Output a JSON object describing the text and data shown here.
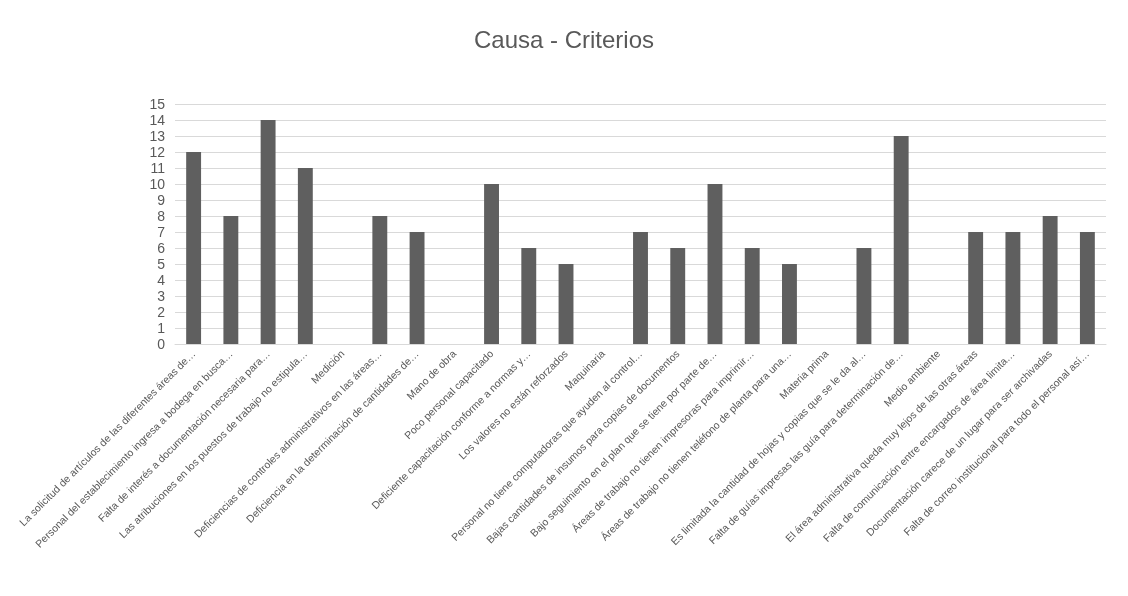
{
  "chart_data": {
    "type": "bar",
    "title": "Causa - Criterios",
    "categories": [
      "La solicitud de artículos de las diferentes áreas de…",
      "Personal del establecimiento ingresa a bodega en busca…",
      "Falta de interés a documentación necesaria para…",
      "Las atribuciones en los puestos de trabajo no estipula…",
      "Medición",
      "Deficiencias de controles administrativos en las áreas…",
      "Deficiencia en la determinación de cantidades de…",
      "Mano de obra",
      "Poco personal capacitado",
      "Deficiente capacitación conforme a normas y…",
      "Los valores no están reforzados",
      "Maquinaria",
      "Personal no tiene computadoras que ayuden al control…",
      "Bajas cantidades de insumos para copias de documentos",
      "Bajo seguimiento en el plan que se tiene por parte de…",
      "Áreas de trabajo no tienen impresoras para imprimir…",
      "Áreas de trabajo no tienen teléfono de planta para una…",
      "Materia prima",
      "Es limitada la cantidad de hojas y copias que se le da al…",
      "Falta de guías impresas las guía para determinación de…",
      "Medio ambiente",
      "El área administrativa queda muy lejos de las otras áreas",
      "Falta de comunicación entre encargados de área limita…",
      "Documentación carece de un lugar para ser archivadas",
      "Falta de correo institucional para todo el personal así…"
    ],
    "values": [
      12,
      8,
      14,
      11,
      null,
      8,
      7,
      null,
      10,
      6,
      5,
      null,
      7,
      6,
      10,
      6,
      5,
      null,
      6,
      13,
      null,
      7,
      7,
      8,
      7
    ],
    "color": "#5f5f5f",
    "ylim": [
      0,
      15
    ],
    "yticks": [
      0,
      1,
      2,
      3,
      4,
      5,
      6,
      7,
      8,
      9,
      10,
      11,
      12,
      13,
      14,
      15
    ],
    "grid": true
  }
}
